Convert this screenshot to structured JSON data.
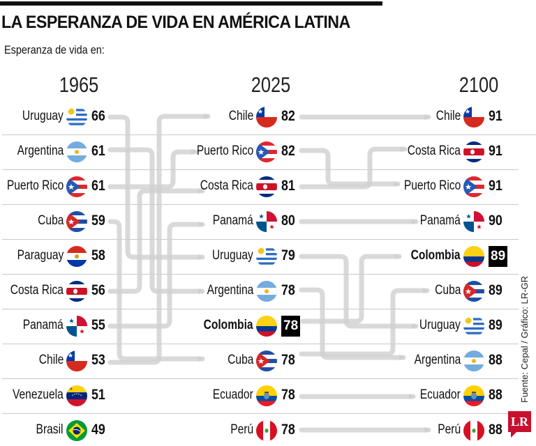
{
  "header": {
    "title": "LA ESPERANZA DE VIDA EN AMÉRICA LATINA",
    "subtitle": "Esperanza de vida en:"
  },
  "columns": [
    {
      "year": "1965",
      "rows": [
        {
          "country": "Uruguay",
          "flag": "uruguay-flag",
          "value": "66"
        },
        {
          "country": "Argentina",
          "flag": "argentina-flag",
          "value": "61"
        },
        {
          "country": "Puerto Rico",
          "flag": "puerto-rico-flag",
          "value": "61"
        },
        {
          "country": "Cuba",
          "flag": "cuba-flag",
          "value": "59"
        },
        {
          "country": "Paraguay",
          "flag": "paraguay-flag",
          "value": "58"
        },
        {
          "country": "Costa Rica",
          "flag": "costa-rica-flag",
          "value": "56"
        },
        {
          "country": "Panamá",
          "flag": "panama-flag",
          "value": "55"
        },
        {
          "country": "Chile",
          "flag": "chile-flag",
          "value": "53"
        },
        {
          "country": "Venezuela",
          "flag": "venezuela-flag",
          "value": "51"
        },
        {
          "country": "Brasil",
          "flag": "brazil-flag",
          "value": "49"
        }
      ]
    },
    {
      "year": "2025",
      "rows": [
        {
          "country": "Chile",
          "flag": "chile-flag",
          "value": "82"
        },
        {
          "country": "Puerto Rico",
          "flag": "puerto-rico-flag",
          "value": "82"
        },
        {
          "country": "Costa Rica",
          "flag": "costa-rica-flag",
          "value": "81"
        },
        {
          "country": "Panamá",
          "flag": "panama-flag",
          "value": "80"
        },
        {
          "country": "Uruguay",
          "flag": "uruguay-flag",
          "value": "79"
        },
        {
          "country": "Argentina",
          "flag": "argentina-flag",
          "value": "78"
        },
        {
          "country": "Colombia",
          "flag": "colombia-flag",
          "value": "78",
          "highlight": true
        },
        {
          "country": "Cuba",
          "flag": "cuba-flag",
          "value": "78"
        },
        {
          "country": "Ecuador",
          "flag": "ecuador-flag",
          "value": "78"
        },
        {
          "country": "Perú",
          "flag": "peru-flag",
          "value": "78"
        }
      ]
    },
    {
      "year": "2100",
      "rows": [
        {
          "country": "Chile",
          "flag": "chile-flag",
          "value": "91"
        },
        {
          "country": "Costa Rica",
          "flag": "costa-rica-flag",
          "value": "91"
        },
        {
          "country": "Puerto Rico",
          "flag": "puerto-rico-flag",
          "value": "91"
        },
        {
          "country": "Panamá",
          "flag": "panama-flag",
          "value": "90"
        },
        {
          "country": "Colombia",
          "flag": "colombia-flag",
          "value": "89",
          "highlight": true
        },
        {
          "country": "Cuba",
          "flag": "cuba-flag",
          "value": "89"
        },
        {
          "country": "Uruguay",
          "flag": "uruguay-flag",
          "value": "89"
        },
        {
          "country": "Argentina",
          "flag": "argentina-flag",
          "value": "88"
        },
        {
          "country": "Ecuador",
          "flag": "ecuador-flag",
          "value": "88"
        },
        {
          "country": "Perú",
          "flag": "peru-flag",
          "value": "88"
        }
      ]
    }
  ],
  "source": "Fuente: Cepal / Gráfico: LR-GR",
  "logo": "LR",
  "colors": {
    "flow": "#d0d0d0",
    "highlight_bg": "#000000",
    "logo_red": "#c8102e",
    "divider": "#c8c8c8"
  }
}
